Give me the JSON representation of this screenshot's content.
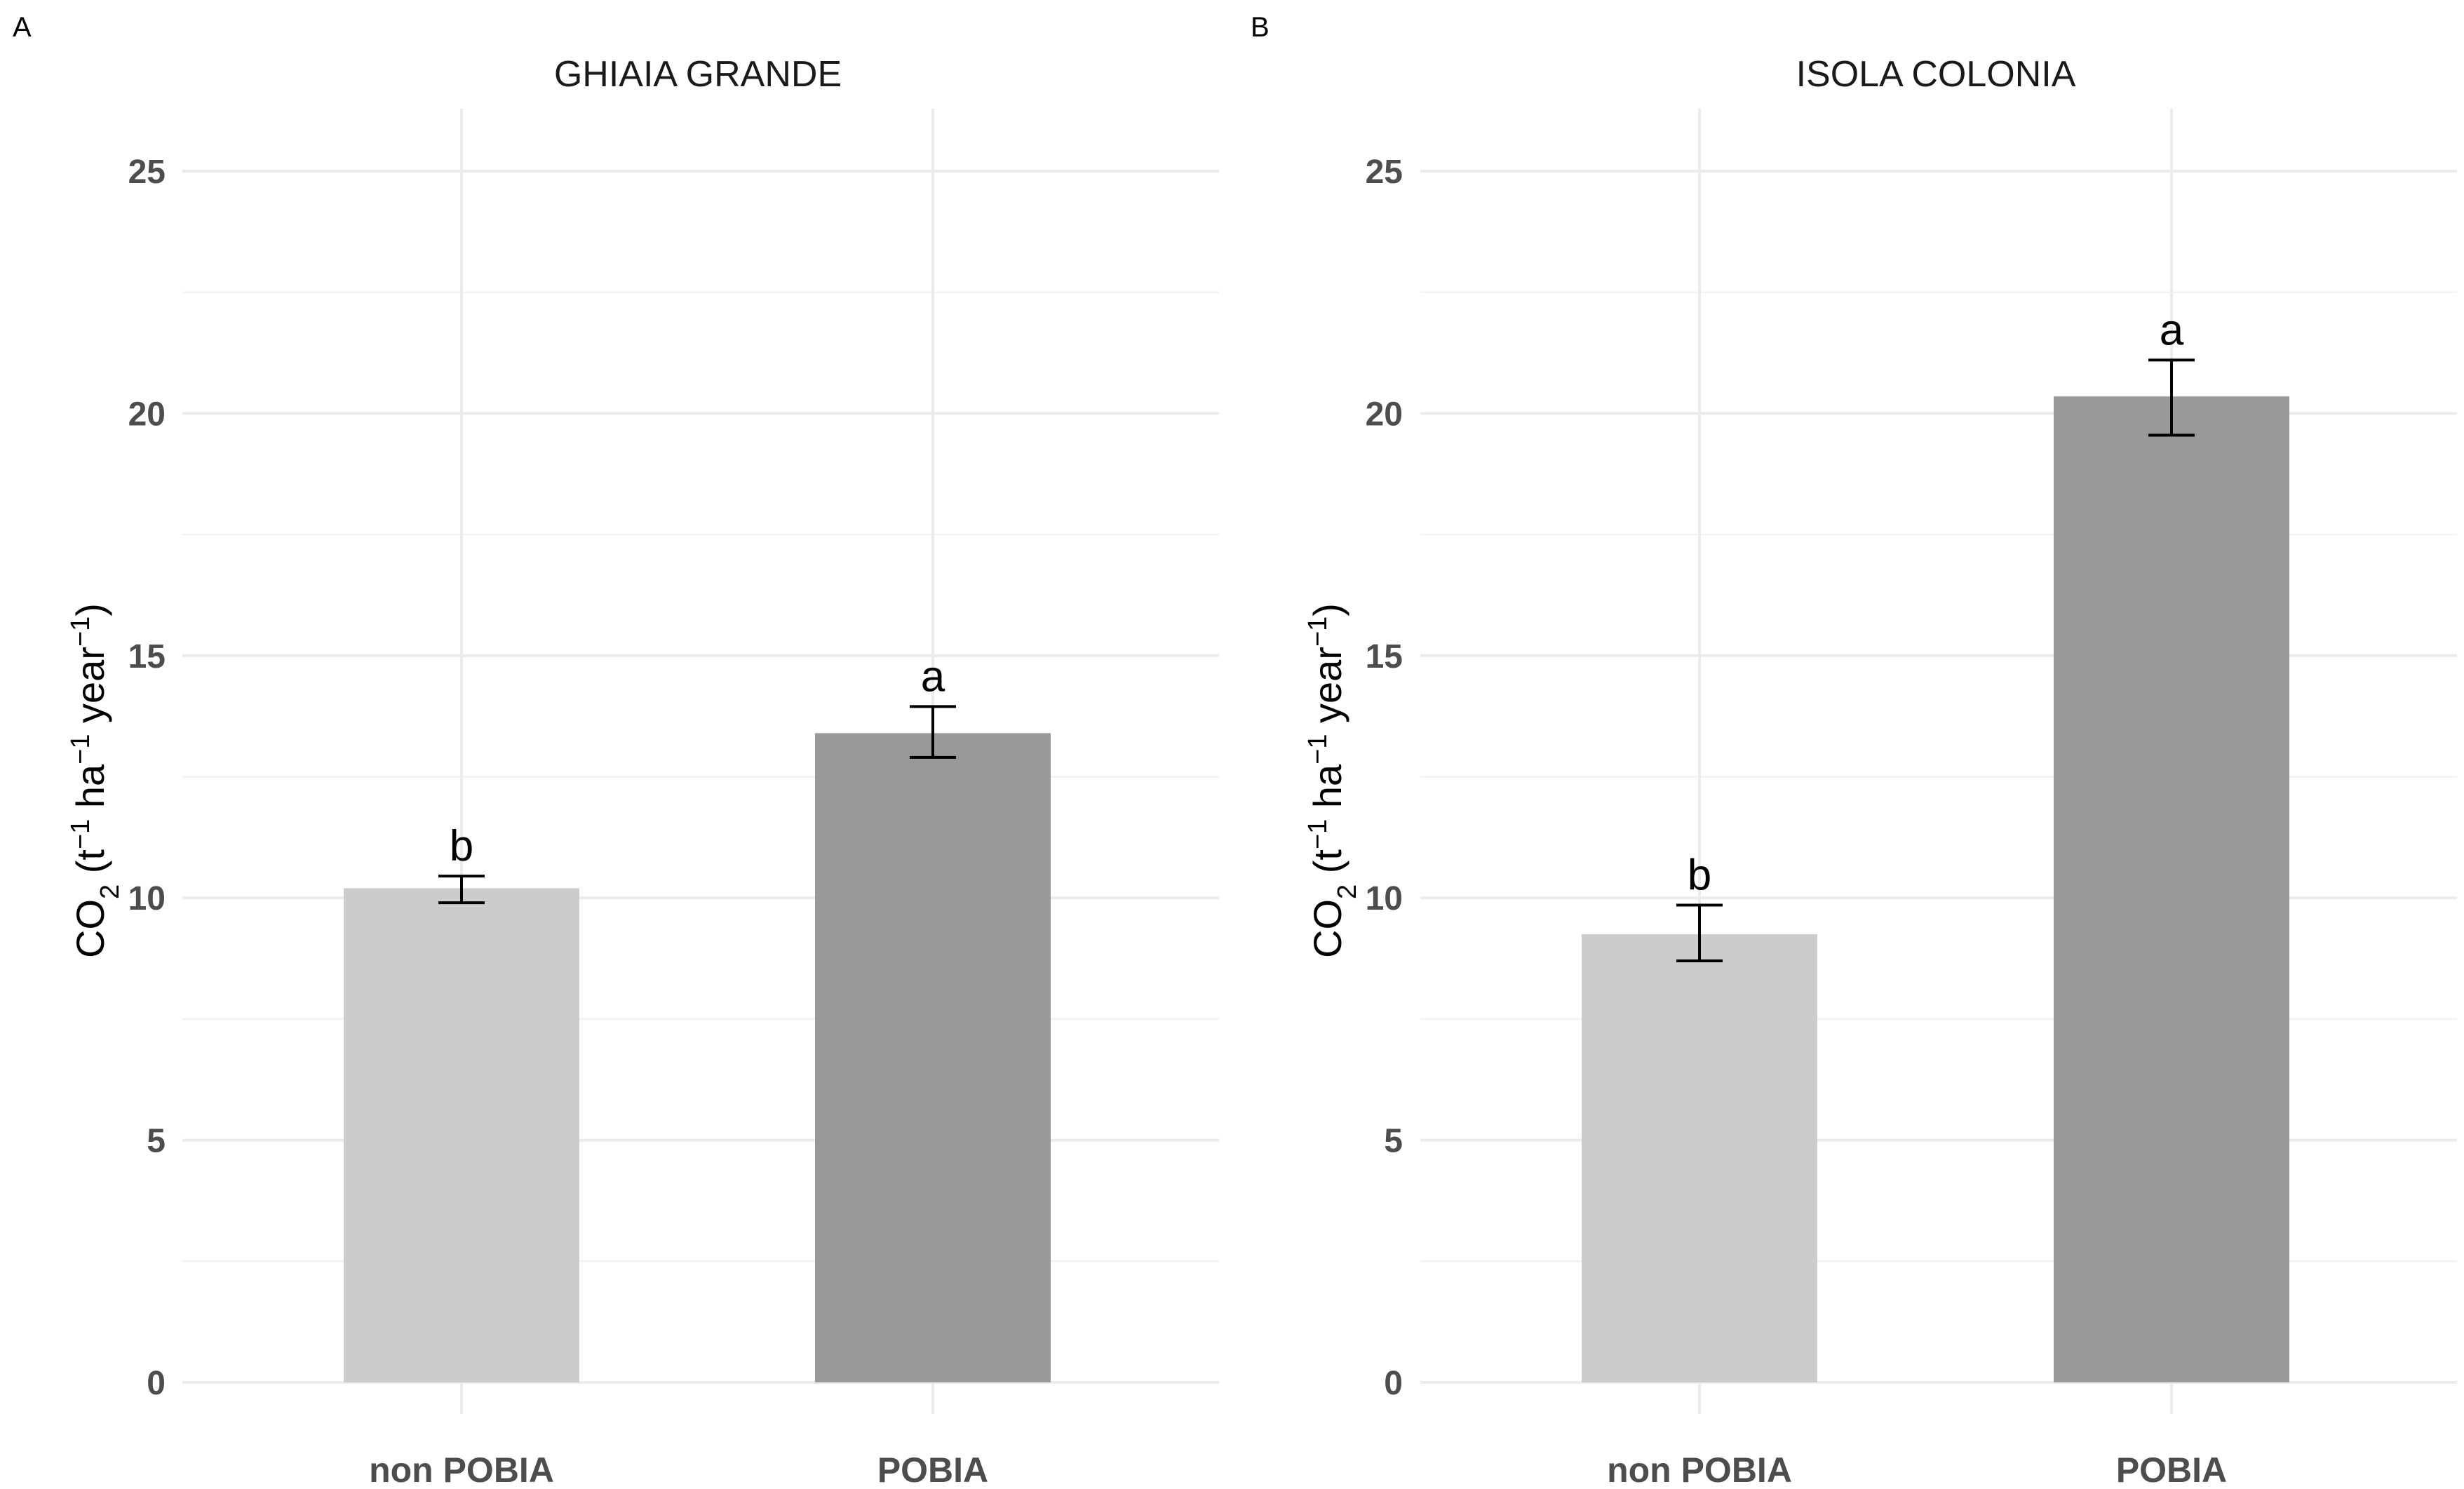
{
  "colors": {
    "non_pobia": "#cccccc",
    "pobia": "#999999",
    "grid": "#ebebeb",
    "tick_text": "#4d4d4d"
  },
  "chart_data": [
    {
      "type": "bar",
      "panel_label": "A",
      "title": "GHIAIA GRANDE",
      "categories": [
        "non POBIA",
        "POBIA"
      ],
      "values": [
        10.2,
        13.4
      ],
      "error_low": [
        9.9,
        12.9
      ],
      "error_high": [
        10.45,
        13.95
      ],
      "significance_labels": [
        "b",
        "a"
      ],
      "xlabel": "",
      "ylabel": "CO2 (t-1 ha-1 year-1)",
      "ylabel_parts": {
        "base": "CO",
        "sub": "2",
        "open": " (t",
        "sup1": "−1",
        "mid1": " ha",
        "sup2": "−1",
        "mid2": " year",
        "sup3": "−1",
        "close": ")"
      },
      "ylim": [
        0,
        25
      ],
      "yticks": [
        "0",
        "5",
        "10",
        "15",
        "20",
        "25"
      ],
      "grid": true
    },
    {
      "type": "bar",
      "panel_label": "B",
      "title": "ISOLA COLONIA",
      "categories": [
        "non POBIA",
        "POBIA"
      ],
      "values": [
        9.25,
        20.35
      ],
      "error_low": [
        8.7,
        19.55
      ],
      "error_high": [
        9.85,
        21.1
      ],
      "significance_labels": [
        "b",
        "a"
      ],
      "xlabel": "",
      "ylabel": "CO2 (t-1 ha-1 year-1)",
      "ylabel_parts": {
        "base": "CO",
        "sub": "2",
        "open": " (t",
        "sup1": "−1",
        "mid1": " ha",
        "sup2": "−1",
        "mid2": " year",
        "sup3": "−1",
        "close": ")"
      },
      "ylim": [
        0,
        25
      ],
      "yticks": [
        "0",
        "5",
        "10",
        "15",
        "20",
        "25"
      ],
      "grid": true
    }
  ]
}
